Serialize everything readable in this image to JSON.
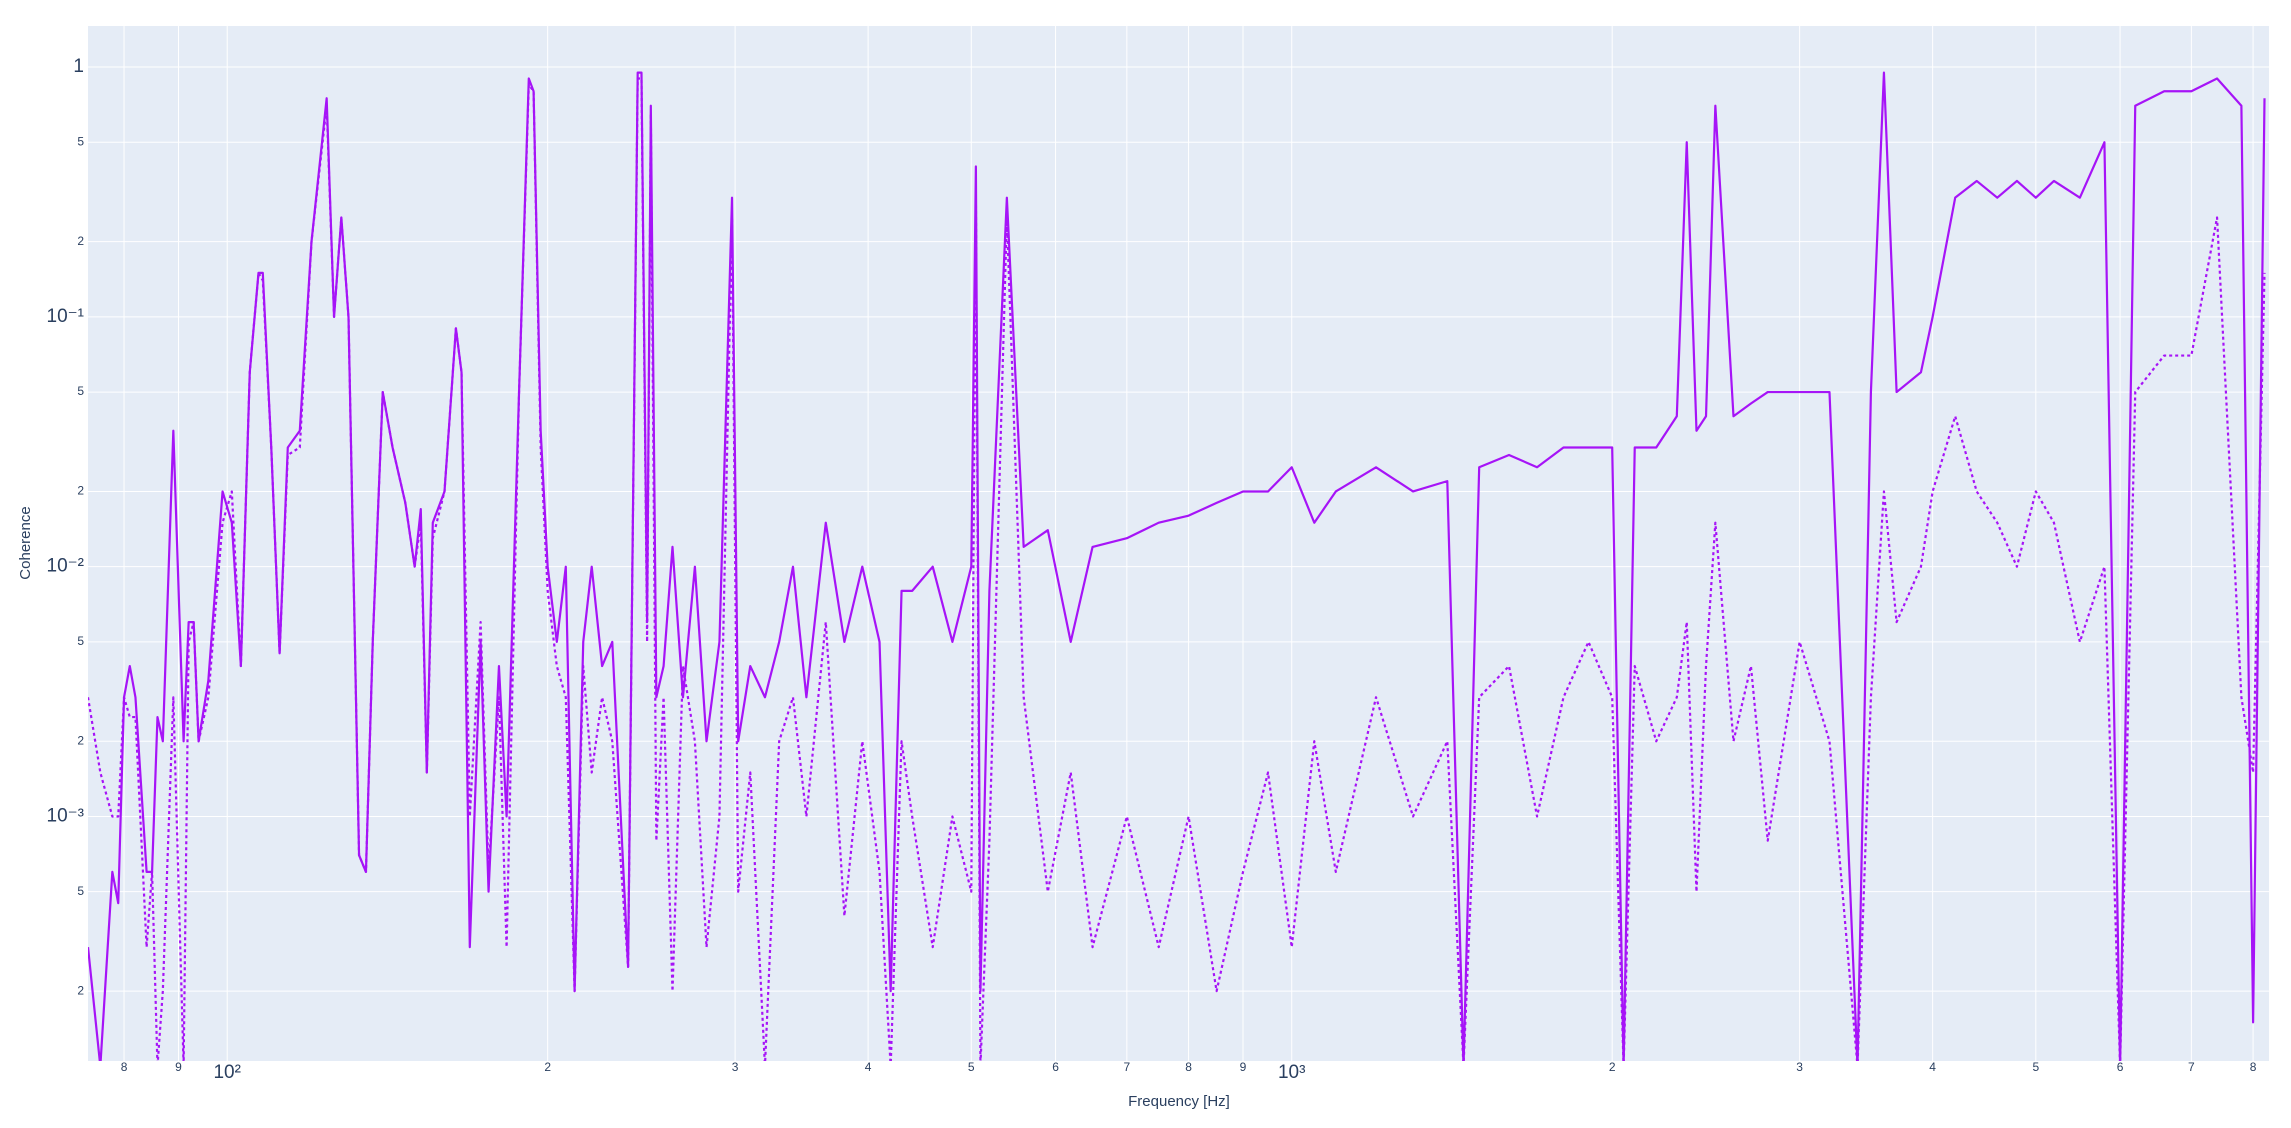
{
  "chart_data": {
    "type": "line",
    "xlabel": "Frequency [Hz]",
    "ylabel": "Coherence",
    "xscale": "log",
    "yscale": "log",
    "grid": true,
    "xlim": [
      74,
      8280
    ],
    "ylim": [
      0.000105,
      1.46
    ],
    "xticks": [
      {
        "value": 80,
        "label": "8"
      },
      {
        "value": 90,
        "label": "9"
      },
      {
        "value": 100,
        "label": "10²"
      },
      {
        "value": 200,
        "label": "2"
      },
      {
        "value": 300,
        "label": "3"
      },
      {
        "value": 400,
        "label": "4"
      },
      {
        "value": 500,
        "label": "5"
      },
      {
        "value": 600,
        "label": "6"
      },
      {
        "value": 700,
        "label": "7"
      },
      {
        "value": 800,
        "label": "8"
      },
      {
        "value": 900,
        "label": "9"
      },
      {
        "value": 1000,
        "label": "10³"
      },
      {
        "value": 2000,
        "label": "2"
      },
      {
        "value": 3000,
        "label": "3"
      },
      {
        "value": 4000,
        "label": "4"
      },
      {
        "value": 5000,
        "label": "5"
      },
      {
        "value": 6000,
        "label": "6"
      },
      {
        "value": 7000,
        "label": "7"
      },
      {
        "value": 8000,
        "label": "8"
      }
    ],
    "yticks": [
      1,
      {
        "value": 0.5,
        "label": "5"
      },
      {
        "value": 0.2,
        "label": "2"
      },
      {
        "value": 0.1,
        "label": "10⁻¹"
      },
      {
        "value": 0.05,
        "label": "5"
      },
      {
        "value": 0.02,
        "label": "2"
      },
      {
        "value": 0.01,
        "label": "10⁻²"
      },
      {
        "value": 0.005,
        "label": "5"
      },
      {
        "value": 0.002,
        "label": "2"
      },
      {
        "value": 0.001,
        "label": "10⁻³"
      },
      {
        "value": 0.0005,
        "label": "5"
      },
      {
        "value": 0.0002,
        "label": "2"
      }
    ],
    "x": [
      74,
      76,
      78,
      79,
      80,
      81,
      82,
      84,
      85,
      86,
      87,
      89,
      91,
      92,
      93,
      94,
      96,
      99,
      101,
      103,
      105,
      107,
      108,
      110,
      112,
      114,
      117,
      120,
      124,
      126,
      128,
      130,
      133,
      135,
      137,
      140,
      143,
      147,
      150,
      152,
      154,
      156,
      160,
      164,
      166,
      169,
      173,
      176,
      180,
      183,
      188,
      192,
      194,
      197,
      200,
      204,
      208,
      212,
      216,
      220,
      225,
      230,
      238,
      243,
      245,
      248,
      250,
      253,
      257,
      262,
      268,
      275,
      282,
      290,
      298,
      302,
      310,
      320,
      330,
      340,
      350,
      365,
      380,
      395,
      410,
      420,
      430,
      440,
      460,
      480,
      500,
      505,
      510,
      520,
      540,
      560,
      590,
      620,
      650,
      700,
      750,
      800,
      850,
      900,
      950,
      1000,
      1050,
      1100,
      1200,
      1300,
      1400,
      1450,
      1500,
      1600,
      1700,
      1800,
      1900,
      2000,
      2050,
      2100,
      2200,
      2300,
      2350,
      2400,
      2450,
      2500,
      2600,
      2700,
      2800,
      3000,
      3200,
      3400,
      3500,
      3600,
      3700,
      3900,
      4000,
      4200,
      4400,
      4600,
      4800,
      5000,
      5200,
      5500,
      5800,
      6000,
      6200,
      6600,
      7000,
      7400,
      7800,
      8000,
      8200
    ],
    "series": [
      {
        "color": "#a614f7",
        "dash": "solid",
        "values": [
          0.0003,
          0.0001,
          0.0006,
          0.00045,
          0.003,
          0.004,
          0.003,
          0.0006,
          0.0006,
          0.0025,
          0.002,
          0.035,
          0.002,
          0.006,
          0.006,
          0.002,
          0.0035,
          0.02,
          0.015,
          0.004,
          0.06,
          0.15,
          0.15,
          0.03,
          0.0045,
          0.03,
          0.035,
          0.2,
          0.75,
          0.1,
          0.25,
          0.1,
          0.0007,
          0.0006,
          0.005,
          0.05,
          0.03,
          0.018,
          0.01,
          0.017,
          0.0015,
          0.015,
          0.02,
          0.09,
          0.06,
          0.0003,
          0.005,
          0.0005,
          0.004,
          0.001,
          0.05,
          0.9,
          0.8,
          0.035,
          0.01,
          0.005,
          0.01,
          0.0002,
          0.005,
          0.01,
          0.004,
          0.005,
          0.00025,
          0.95,
          0.95,
          0.006,
          0.7,
          0.003,
          0.004,
          0.012,
          0.003,
          0.01,
          0.002,
          0.005,
          0.3,
          0.002,
          0.004,
          0.003,
          0.005,
          0.01,
          0.003,
          0.015,
          0.005,
          0.01,
          0.005,
          0.0002,
          0.008,
          0.008,
          0.01,
          0.005,
          0.01,
          0.4,
          0.0002,
          0.008,
          0.3,
          0.012,
          0.014,
          0.005,
          0.012,
          0.013,
          0.015,
          0.016,
          0.018,
          0.02,
          0.02,
          0.025,
          0.015,
          0.02,
          0.025,
          0.02,
          0.022,
          0.0001,
          0.025,
          0.028,
          0.025,
          0.03,
          0.03,
          0.03,
          0.0001,
          0.03,
          0.03,
          0.04,
          0.5,
          0.035,
          0.04,
          0.7,
          0.04,
          0.045,
          0.05,
          0.05,
          0.05,
          0.0001,
          0.05,
          0.95,
          0.05,
          0.06,
          0.1,
          0.3,
          0.35,
          0.3,
          0.35,
          0.3,
          0.35,
          0.3,
          0.5,
          0.0001,
          0.7,
          0.8,
          0.8,
          0.9,
          0.7,
          0.00015,
          0.75
        ]
      },
      {
        "color": "#a614f7",
        "dash": "dot",
        "values": [
          0.003,
          0.0015,
          0.001,
          0.001,
          0.003,
          0.0025,
          0.0025,
          0.0003,
          0.0006,
          0.0001,
          0.0002,
          0.003,
          0.0001,
          0.005,
          0.006,
          0.002,
          0.003,
          0.015,
          0.02,
          0.004,
          0.06,
          0.15,
          0.14,
          0.03,
          0.0045,
          0.028,
          0.03,
          0.2,
          0.7,
          0.1,
          0.25,
          0.1,
          0.0007,
          0.0006,
          0.005,
          0.05,
          0.03,
          0.018,
          0.01,
          0.015,
          0.0015,
          0.013,
          0.02,
          0.09,
          0.06,
          0.001,
          0.006,
          0.0006,
          0.003,
          0.0003,
          0.05,
          0.85,
          0.8,
          0.03,
          0.008,
          0.004,
          0.003,
          0.0002,
          0.004,
          0.0015,
          0.003,
          0.002,
          0.00025,
          0.9,
          0.9,
          0.005,
          0.65,
          0.0008,
          0.003,
          0.0002,
          0.004,
          0.002,
          0.0003,
          0.001,
          0.25,
          0.0005,
          0.0015,
          0.0001,
          0.002,
          0.003,
          0.001,
          0.006,
          0.0004,
          0.002,
          0.0006,
          0.0001,
          0.002,
          0.001,
          0.0003,
          0.001,
          0.0005,
          0.3,
          0.0001,
          0.0008,
          0.25,
          0.003,
          0.0005,
          0.0015,
          0.0003,
          0.001,
          0.0003,
          0.001,
          0.0002,
          0.0006,
          0.0015,
          0.0003,
          0.002,
          0.0006,
          0.003,
          0.001,
          0.002,
          0.0001,
          0.003,
          0.004,
          0.001,
          0.003,
          0.005,
          0.003,
          0.0001,
          0.004,
          0.002,
          0.003,
          0.006,
          0.0005,
          0.004,
          0.015,
          0.002,
          0.004,
          0.0008,
          0.005,
          0.002,
          0.0001,
          0.003,
          0.02,
          0.006,
          0.01,
          0.02,
          0.04,
          0.02,
          0.015,
          0.01,
          0.02,
          0.015,
          0.005,
          0.01,
          0.0001,
          0.05,
          0.07,
          0.07,
          0.25,
          0.003,
          0.0015,
          0.15
        ]
      }
    ]
  }
}
